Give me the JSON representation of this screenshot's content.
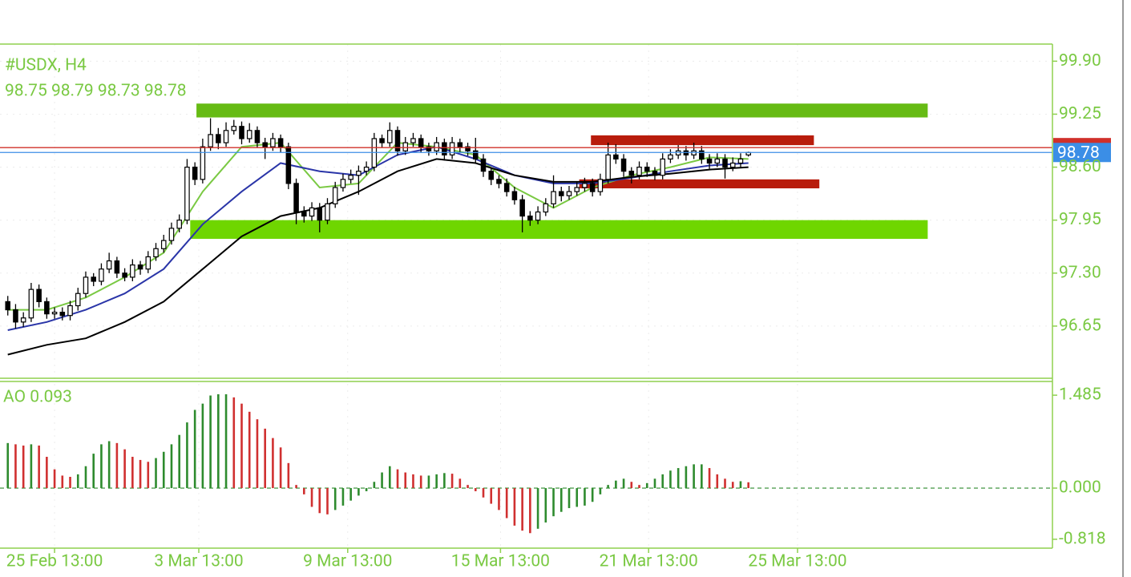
{
  "chart_data": [
    {
      "type": "candlestick",
      "title": "#USDX, H4",
      "subtitle": "98.75 98.79 98.73 98.78",
      "xlim": [
        -1,
        134
      ],
      "ylim": [
        96.01,
        100.11
      ],
      "yticks": [
        {
          "value": 99.9,
          "label": "99.90"
        },
        99.25,
        {
          "value": 98.6,
          "label": "98.60"
        },
        97.95,
        {
          "value": 97.3,
          "label": "97.30"
        },
        96.65
      ],
      "grid": true,
      "up_color": "#ffffff",
      "down_color": "#000000",
      "outline_color": "#000000",
      "ohlc": [
        [
          96.95,
          97.02,
          96.78,
          96.85
        ],
        [
          96.85,
          96.92,
          96.62,
          96.7
        ],
        [
          96.7,
          96.82,
          96.64,
          96.75
        ],
        [
          96.75,
          97.18,
          96.7,
          97.1
        ],
        [
          97.1,
          97.16,
          96.88,
          96.95
        ],
        [
          96.95,
          97.0,
          96.74,
          96.8
        ],
        [
          96.8,
          96.88,
          96.74,
          96.82
        ],
        [
          96.82,
          96.88,
          96.72,
          96.78
        ],
        [
          96.78,
          96.96,
          96.72,
          96.9
        ],
        [
          96.9,
          97.12,
          96.84,
          97.05
        ],
        [
          97.05,
          97.32,
          97.0,
          97.25
        ],
        [
          97.25,
          97.3,
          97.14,
          97.2
        ],
        [
          97.2,
          97.42,
          97.15,
          97.35
        ],
        [
          97.35,
          97.55,
          97.3,
          97.45
        ],
        [
          97.45,
          97.5,
          97.24,
          97.3
        ],
        [
          97.3,
          97.36,
          97.2,
          97.25
        ],
        [
          97.25,
          97.47,
          97.2,
          97.4
        ],
        [
          97.4,
          97.45,
          97.28,
          97.35
        ],
        [
          97.35,
          97.57,
          97.3,
          97.5
        ],
        [
          97.5,
          97.67,
          97.45,
          97.6
        ],
        [
          97.6,
          97.77,
          97.55,
          97.7
        ],
        [
          97.7,
          97.92,
          97.65,
          97.85
        ],
        [
          97.85,
          98.02,
          97.8,
          97.95
        ],
        [
          97.95,
          98.7,
          97.9,
          98.6
        ],
        [
          98.6,
          98.66,
          98.38,
          98.45
        ],
        [
          98.45,
          98.95,
          98.4,
          98.85
        ],
        [
          98.85,
          99.2,
          98.8,
          99.0
        ],
        [
          99.0,
          99.08,
          98.82,
          98.9
        ],
        [
          98.9,
          99.15,
          98.85,
          99.05
        ],
        [
          99.05,
          99.18,
          99.0,
          99.1
        ],
        [
          99.1,
          99.16,
          98.88,
          98.95
        ],
        [
          98.95,
          99.14,
          98.9,
          99.05
        ],
        [
          99.05,
          99.1,
          98.84,
          98.9
        ],
        [
          98.9,
          98.96,
          98.7,
          98.85
        ],
        [
          98.85,
          99.02,
          98.8,
          98.95
        ],
        [
          98.95,
          99.0,
          98.78,
          98.85
        ],
        [
          98.85,
          98.9,
          98.33,
          98.4
        ],
        [
          98.4,
          98.46,
          97.9,
          98.05
        ],
        [
          98.05,
          98.12,
          97.92,
          98.0
        ],
        [
          98.0,
          98.17,
          97.94,
          98.1
        ],
        [
          98.1,
          98.16,
          97.8,
          97.95
        ],
        [
          97.95,
          98.22,
          97.9,
          98.15
        ],
        [
          98.15,
          98.42,
          98.1,
          98.35
        ],
        [
          98.35,
          98.52,
          98.3,
          98.45
        ],
        [
          98.45,
          98.57,
          98.4,
          98.5
        ],
        [
          98.5,
          98.62,
          98.26,
          98.55
        ],
        [
          98.55,
          98.67,
          98.5,
          98.6
        ],
        [
          98.6,
          99.02,
          98.55,
          98.95
        ],
        [
          98.95,
          99.0,
          98.84,
          98.9
        ],
        [
          98.9,
          99.15,
          98.85,
          99.05
        ],
        [
          99.05,
          99.1,
          98.74,
          98.8
        ],
        [
          98.8,
          98.97,
          98.75,
          98.9
        ],
        [
          98.9,
          99.02,
          98.85,
          98.95
        ],
        [
          98.95,
          99.0,
          98.78,
          98.85
        ],
        [
          98.85,
          98.9,
          98.74,
          98.8
        ],
        [
          98.8,
          98.97,
          98.75,
          98.9
        ],
        [
          98.9,
          98.95,
          98.68,
          98.75
        ],
        [
          98.75,
          98.97,
          98.7,
          98.9
        ],
        [
          98.9,
          98.95,
          98.78,
          98.85
        ],
        [
          98.85,
          98.9,
          98.74,
          98.8
        ],
        [
          98.8,
          98.96,
          98.64,
          98.7
        ],
        [
          98.7,
          98.76,
          98.48,
          98.55
        ],
        [
          98.55,
          98.6,
          98.38,
          98.45
        ],
        [
          98.45,
          98.5,
          98.34,
          98.4
        ],
        [
          98.4,
          98.46,
          98.24,
          98.3
        ],
        [
          98.3,
          98.36,
          98.14,
          98.2
        ],
        [
          98.2,
          98.26,
          97.8,
          98.0
        ],
        [
          98.0,
          98.06,
          97.88,
          97.95
        ],
        [
          97.95,
          98.12,
          97.9,
          98.05
        ],
        [
          98.05,
          98.22,
          98.0,
          98.15
        ],
        [
          98.15,
          98.5,
          98.1,
          98.3
        ],
        [
          98.3,
          98.36,
          98.18,
          98.25
        ],
        [
          98.25,
          98.37,
          98.2,
          98.3
        ],
        [
          98.3,
          98.42,
          98.25,
          98.35
        ],
        [
          98.35,
          98.47,
          98.3,
          98.4
        ],
        [
          98.4,
          98.46,
          98.24,
          98.3
        ],
        [
          98.3,
          98.52,
          98.25,
          98.45
        ],
        [
          98.45,
          98.9,
          98.4,
          98.75
        ],
        [
          98.75,
          98.88,
          98.64,
          98.7
        ],
        [
          98.7,
          98.76,
          98.48,
          98.55
        ],
        [
          98.55,
          98.6,
          98.4,
          98.5
        ],
        [
          98.5,
          98.67,
          98.45,
          98.6
        ],
        [
          98.6,
          98.66,
          98.48,
          98.55
        ],
        [
          98.55,
          98.6,
          98.44,
          98.5
        ],
        [
          98.5,
          98.77,
          98.45,
          98.7
        ],
        [
          98.7,
          98.82,
          98.65,
          98.75
        ],
        [
          98.75,
          98.87,
          98.7,
          98.8
        ],
        [
          98.8,
          98.86,
          98.68,
          98.75
        ],
        [
          98.75,
          98.9,
          98.7,
          98.8
        ],
        [
          98.8,
          98.86,
          98.64,
          98.7
        ],
        [
          98.7,
          98.76,
          98.58,
          98.65
        ],
        [
          98.65,
          98.77,
          98.6,
          98.7
        ],
        [
          98.7,
          98.76,
          98.46,
          98.6
        ],
        [
          98.6,
          98.72,
          98.55,
          98.65
        ],
        [
          98.65,
          98.77,
          98.6,
          98.7
        ],
        [
          98.75,
          98.79,
          98.73,
          98.78
        ]
      ],
      "series": [
        {
          "color": "#7ac943",
          "x": [
            0,
            5,
            10,
            15,
            20,
            25,
            30,
            35,
            40,
            45,
            50,
            55,
            60,
            65,
            70,
            75,
            80,
            85,
            90,
            95
          ],
          "values": [
            96.85,
            96.85,
            97.0,
            97.25,
            97.55,
            98.3,
            98.85,
            98.9,
            98.35,
            98.4,
            98.9,
            98.85,
            98.75,
            98.35,
            98.1,
            98.35,
            98.5,
            98.6,
            98.72,
            98.7
          ]
        },
        {
          "color": "#2a35a8",
          "x": [
            0,
            5,
            10,
            15,
            20,
            25,
            30,
            35,
            40,
            45,
            50,
            55,
            60,
            65,
            70,
            75,
            80,
            85,
            90,
            95
          ],
          "values": [
            96.6,
            96.7,
            96.85,
            97.05,
            97.35,
            97.9,
            98.3,
            98.65,
            98.55,
            98.5,
            98.75,
            98.85,
            98.7,
            98.5,
            98.4,
            98.4,
            98.47,
            98.55,
            98.62,
            98.65
          ]
        },
        {
          "color": "#000000",
          "x": [
            0,
            5,
            10,
            15,
            20,
            25,
            30,
            35,
            40,
            45,
            50,
            55,
            60,
            65,
            70,
            75,
            80,
            85,
            90,
            95
          ],
          "values": [
            96.3,
            96.42,
            96.5,
            96.7,
            96.95,
            97.35,
            97.75,
            98.0,
            98.1,
            98.3,
            98.55,
            98.7,
            98.65,
            98.5,
            98.42,
            98.42,
            98.48,
            98.52,
            98.57,
            98.6
          ]
        }
      ],
      "zones": [
        {
          "x": [
            24.2,
            118
          ],
          "y": [
            99.21,
            99.38
          ],
          "color": "#66bb14"
        },
        {
          "x": [
            23.4,
            118
          ],
          "y": [
            97.72,
            97.95
          ],
          "color": "#6fd600"
        },
        {
          "x": [
            74.8,
            103.4
          ],
          "y": [
            98.87,
            98.99
          ],
          "color": "#b81c0c"
        },
        {
          "x": [
            73.3,
            104.1
          ],
          "y": [
            98.34,
            98.45
          ],
          "color": "#b81c0c"
        }
      ],
      "price_lines": [
        {
          "value": 98.84,
          "color": "#d0302a"
        },
        {
          "value": 98.78,
          "color": "#3b8ee6"
        }
      ]
    },
    {
      "type": "bar",
      "title": "AO 0.093",
      "xlim": [
        -1,
        134
      ],
      "ylim": [
        -0.96,
        1.73
      ],
      "yticks": [
        1.485,
        {
          "value": 0,
          "label": "0.000"
        },
        -0.818
      ],
      "xticks": [
        {
          "value": 6,
          "label": "25 Feb 13:00"
        },
        {
          "value": 24.5,
          "label": "3 Mar 13:00"
        },
        {
          "value": 43.6,
          "label": "9 Mar 13:00"
        },
        {
          "value": 63.2,
          "label": "15 Mar 13:00"
        },
        {
          "value": 82.2,
          "label": "21 Mar 13:00"
        },
        {
          "value": 101.3,
          "label": "25 Mar 13:00"
        }
      ],
      "up_color": "#2e8b2e",
      "down_color": "#d03030",
      "values": [
        0.72,
        0.7,
        0.68,
        0.7,
        0.68,
        0.5,
        0.3,
        0.2,
        0.18,
        0.22,
        0.35,
        0.55,
        0.7,
        0.75,
        0.72,
        0.62,
        0.5,
        0.45,
        0.42,
        0.48,
        0.58,
        0.7,
        0.85,
        1.05,
        1.25,
        1.35,
        1.48,
        1.5,
        1.5,
        1.45,
        1.35,
        1.22,
        1.1,
        0.95,
        0.8,
        0.65,
        0.4,
        0.05,
        -0.1,
        -0.3,
        -0.4,
        -0.42,
        -0.35,
        -0.28,
        -0.2,
        -0.12,
        -0.05,
        0.1,
        0.25,
        0.35,
        0.3,
        0.25,
        0.22,
        0.2,
        0.2,
        0.22,
        0.24,
        0.23,
        0.15,
        0.05,
        -0.05,
        -0.15,
        -0.25,
        -0.35,
        -0.48,
        -0.6,
        -0.68,
        -0.72,
        -0.65,
        -0.55,
        -0.45,
        -0.38,
        -0.32,
        -0.3,
        -0.28,
        -0.22,
        -0.1,
        0.05,
        0.12,
        0.15,
        0.1,
        0.05,
        0.08,
        0.15,
        0.22,
        0.28,
        0.32,
        0.35,
        0.38,
        0.38,
        0.32,
        0.22,
        0.15,
        0.1,
        0.11,
        0.093
      ]
    }
  ]
}
